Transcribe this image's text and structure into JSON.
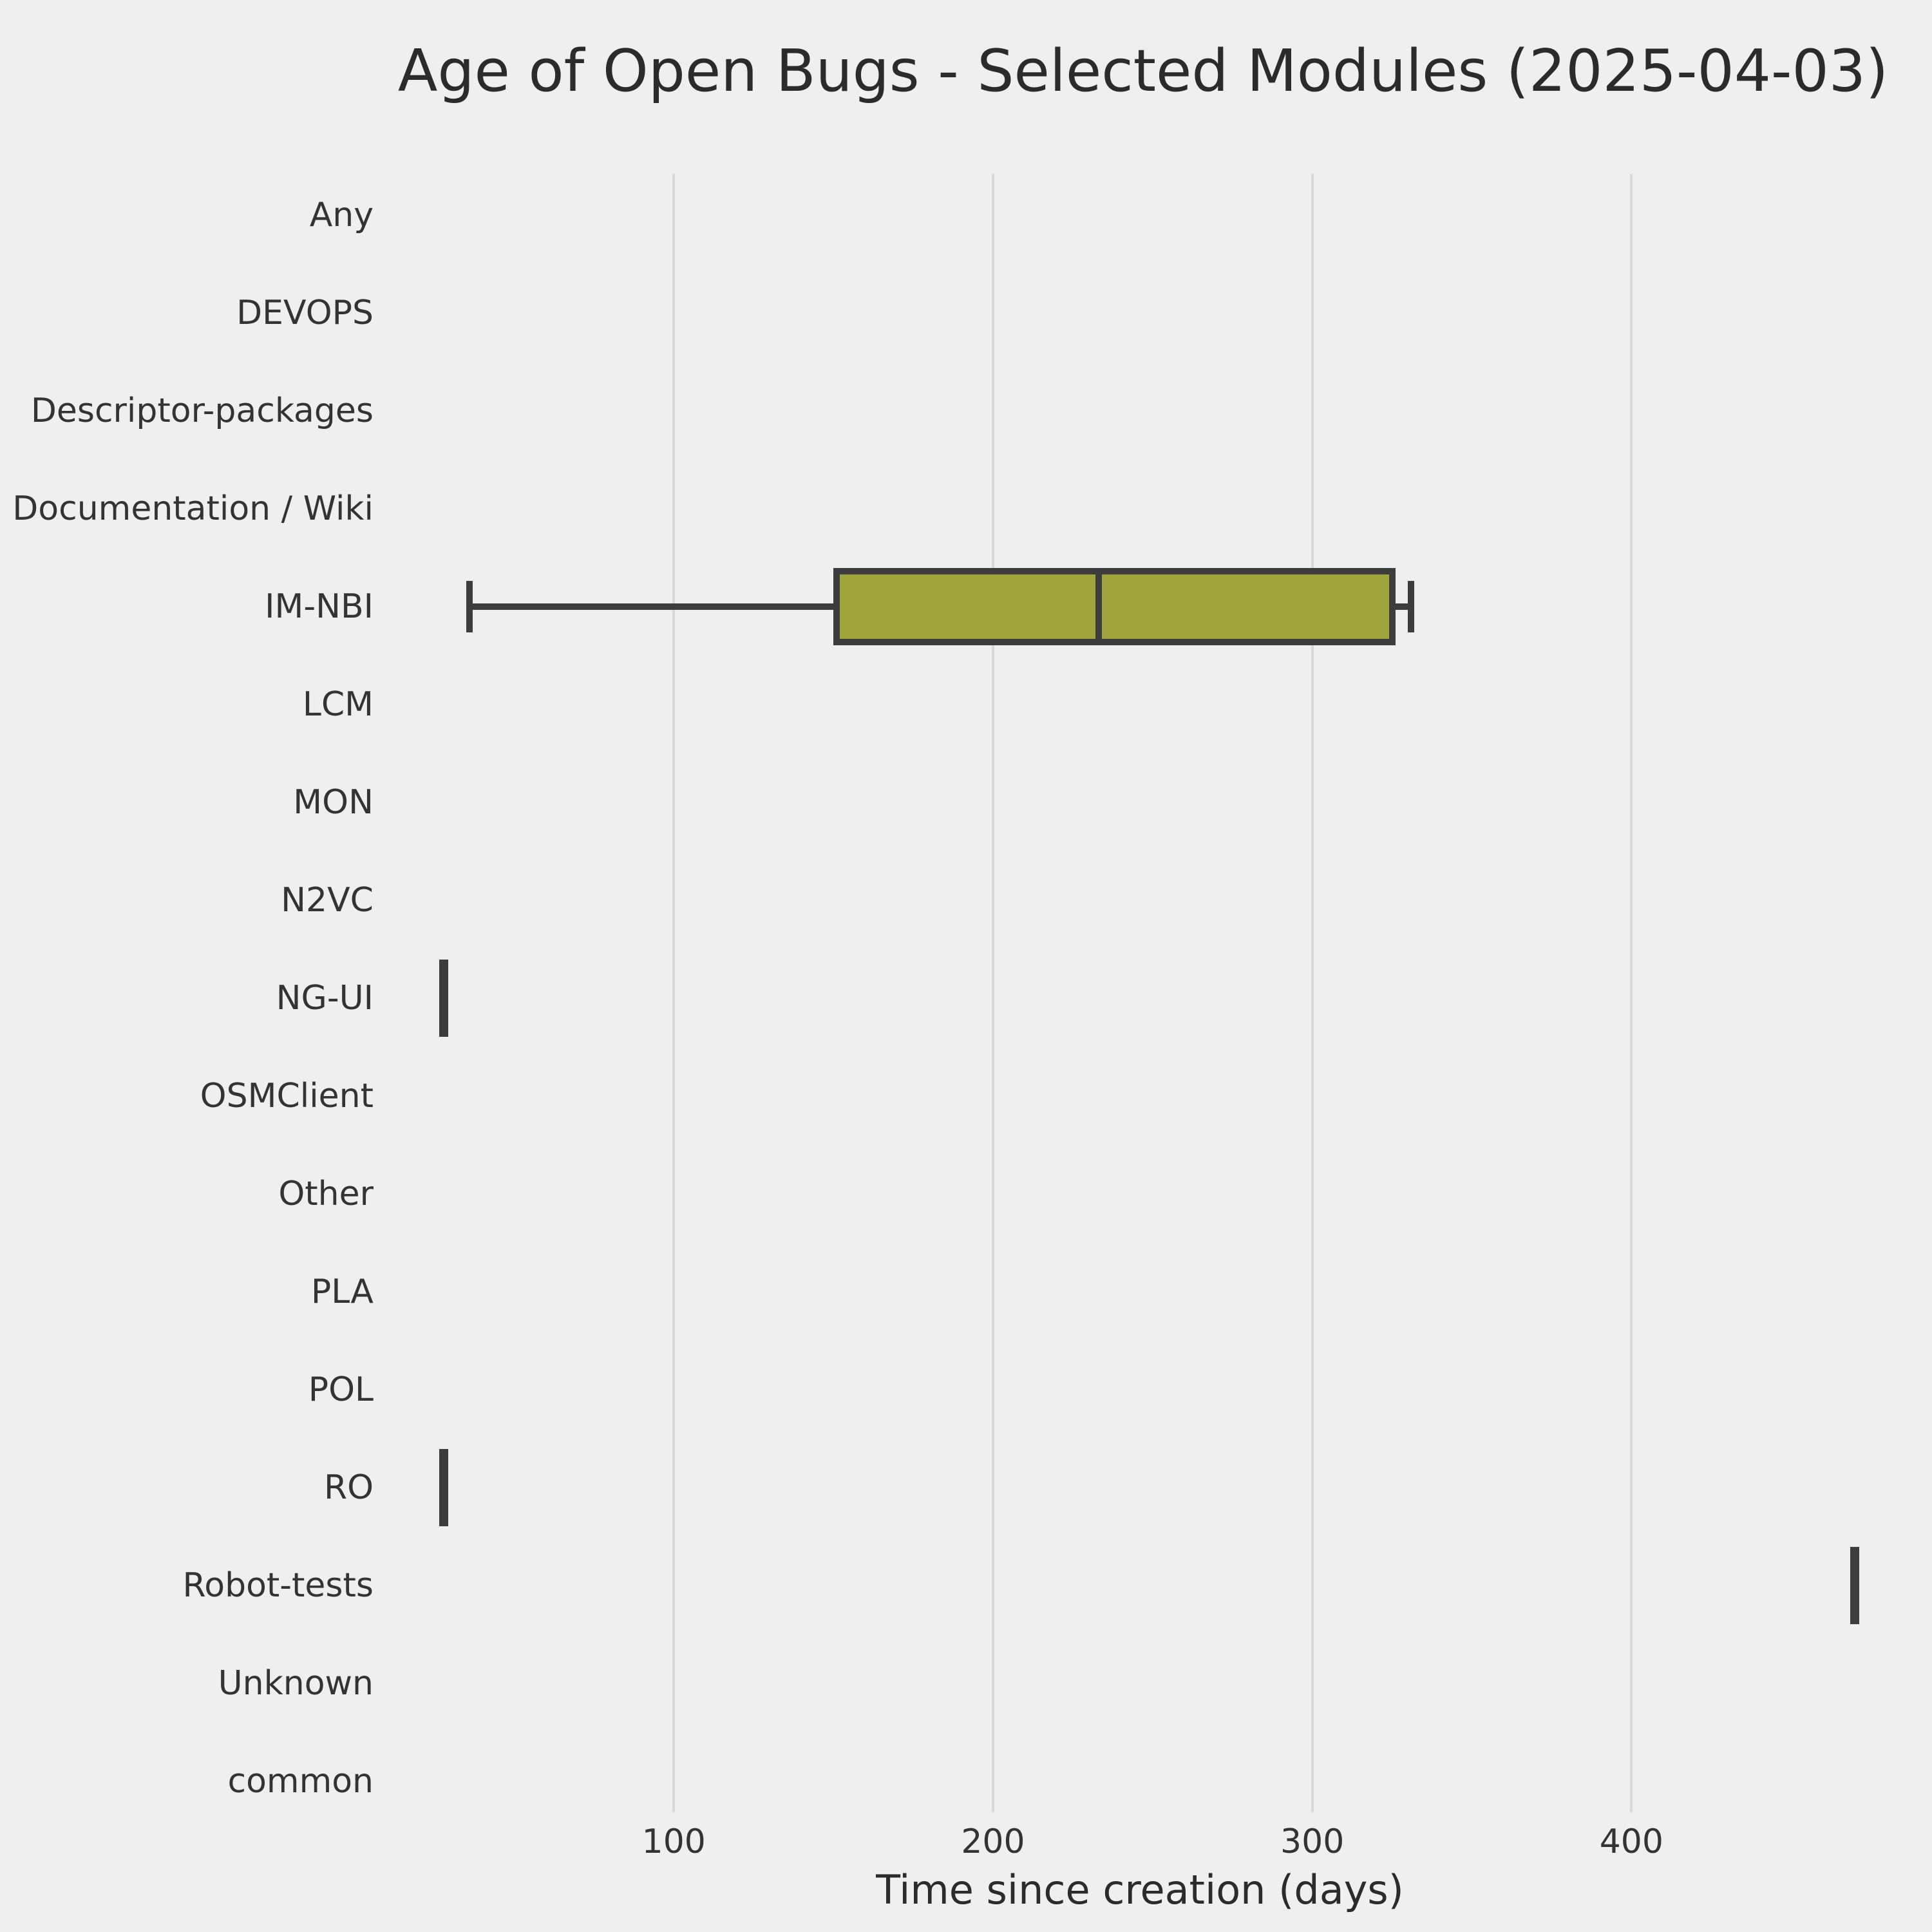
{
  "title": "Age of Open Bugs - Selected Modules (2025-04-03)",
  "chart_data": {
    "type": "box",
    "orientation": "horizontal",
    "title": "Age of Open Bugs - Selected Modules (2025-04-03)",
    "xlabel": "Time since creation (days)",
    "ylabel": "",
    "xticks": [
      100,
      200,
      300,
      400
    ],
    "xlim": [
      14,
      478
    ],
    "grid": "vertical-only",
    "legend": "none",
    "colors": {
      "background": "#efefef",
      "gridline": "#d9d9d9",
      "box_fill": "#a0a43c",
      "box_edge": "#3d3d3d",
      "text": "#333333"
    },
    "categories": [
      "Any",
      "DEVOPS",
      "Descriptor-packages",
      "Documentation / Wiki",
      "IM-NBI",
      "LCM",
      "MON",
      "N2VC",
      "NG-UI",
      "OSMClient",
      "Other",
      "PLA",
      "POL",
      "RO",
      "Robot-tests",
      "Unknown",
      "common"
    ],
    "boxes": [
      {
        "category": "Any",
        "stats": null
      },
      {
        "category": "DEVOPS",
        "stats": null
      },
      {
        "category": "Descriptor-packages",
        "stats": null
      },
      {
        "category": "Documentation / Wiki",
        "stats": null
      },
      {
        "category": "IM-NBI",
        "stats": {
          "whisker_low": 36,
          "q1": 150,
          "median": 233,
          "q3": 326,
          "whisker_high": 331
        }
      },
      {
        "category": "LCM",
        "stats": null
      },
      {
        "category": "MON",
        "stats": null
      },
      {
        "category": "N2VC",
        "stats": null
      },
      {
        "category": "NG-UI",
        "stats": {
          "whisker_low": 28,
          "q1": 28,
          "median": 28,
          "q3": 28,
          "whisker_high": 28
        }
      },
      {
        "category": "OSMClient",
        "stats": null
      },
      {
        "category": "Other",
        "stats": null
      },
      {
        "category": "PLA",
        "stats": null
      },
      {
        "category": "POL",
        "stats": null
      },
      {
        "category": "RO",
        "stats": {
          "whisker_low": 28,
          "q1": 28,
          "median": 28,
          "q3": 28,
          "whisker_high": 28
        }
      },
      {
        "category": "Robot-tests",
        "stats": {
          "whisker_low": 470,
          "q1": 470,
          "median": 470,
          "q3": 470,
          "whisker_high": 470
        }
      },
      {
        "category": "Unknown",
        "stats": null
      },
      {
        "category": "common",
        "stats": null
      }
    ]
  }
}
